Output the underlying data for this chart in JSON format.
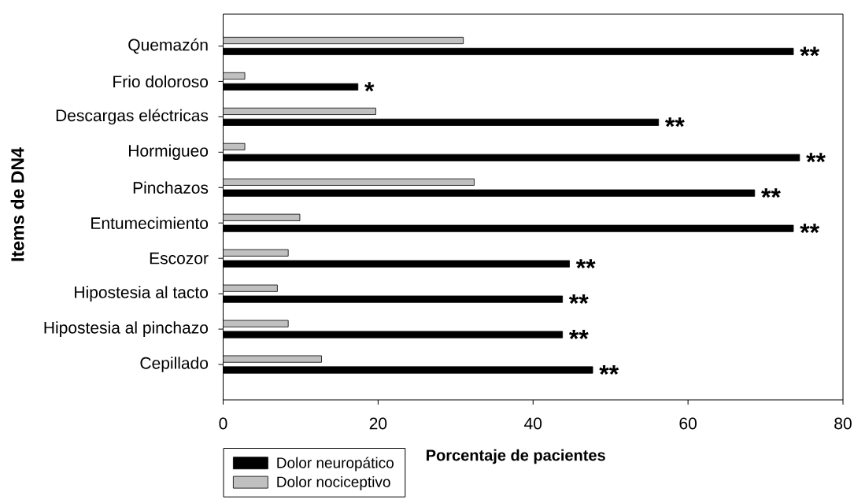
{
  "chart_data": {
    "type": "bar",
    "orientation": "horizontal",
    "xlabel": "Porcentaje de pacientes",
    "ylabel": "Items de DN4",
    "categories": [
      "Quemazón",
      "Frio doloroso",
      "Descargas eléctricas",
      "Hormigueo",
      "Pinchazos",
      "Entumecimiento",
      "Escozor",
      "Hipostesia al tacto",
      "Hipostesia al pinchazo",
      "Cepillado"
    ],
    "series": [
      {
        "name": "Dolor neuropático",
        "color": "#000000",
        "values": [
          73.6,
          17.4,
          56.2,
          74.4,
          68.6,
          73.6,
          44.7,
          43.8,
          43.8,
          47.7
        ]
      },
      {
        "name": "Dolor nociceptivo",
        "color": "#c0c0c0",
        "values": [
          31.0,
          2.8,
          19.7,
          2.8,
          32.4,
          9.9,
          8.4,
          7.0,
          8.4,
          12.7
        ]
      }
    ],
    "xlim": [
      0,
      80
    ],
    "xticks": [
      0,
      20,
      40,
      60,
      80
    ],
    "legend": "bottom left",
    "annotations": [
      {
        "text": "**",
        "x": 73.6,
        "y": "Quemazón"
      },
      {
        "text": "*",
        "x": 17.4,
        "y": "Frio doloroso"
      },
      {
        "text": "**",
        "x": 56.2,
        "y": "Descargas eléctricas"
      },
      {
        "text": "**",
        "x": 74.4,
        "y": "Hormigueo"
      },
      {
        "text": "**",
        "x": 68.6,
        "y": "Pinchazos"
      },
      {
        "text": "**",
        "x": 73.6,
        "y": "Entumecimiento"
      },
      {
        "text": "**",
        "x": 44.7,
        "y": "Escozor"
      },
      {
        "text": "**",
        "x": 43.8,
        "y": "Hipostesia al tacto"
      },
      {
        "text": "**",
        "x": 43.8,
        "y": "Hipostesia al pinchazo"
      },
      {
        "text": "**",
        "x": 47.7,
        "y": "Cepillado"
      }
    ]
  }
}
